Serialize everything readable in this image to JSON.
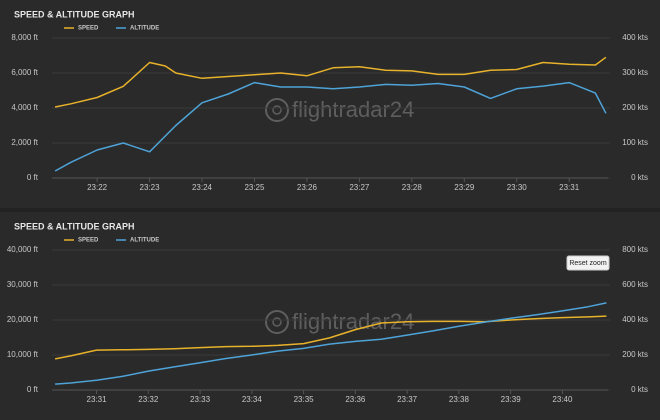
{
  "chart_data": [
    {
      "type": "line",
      "title": "SPEED & ALTITUDE GRAPH",
      "legend": "top",
      "grid": true,
      "watermark": "flightradar24",
      "x": [
        21.2,
        21.5,
        22.0,
        22.5,
        23.0,
        23.3,
        23.5,
        24.0,
        24.5,
        25.0,
        25.5,
        26.0,
        26.5,
        27.0,
        27.5,
        28.0,
        28.5,
        29.0,
        29.5,
        30.0,
        30.5,
        31.0,
        31.5,
        31.7
      ],
      "xlim": [
        21.14,
        31.74
      ],
      "xticks": [
        {
          "value": 22,
          "label": "23:22"
        },
        {
          "value": 23,
          "label": "23:23"
        },
        {
          "value": 24,
          "label": "23:24"
        },
        {
          "value": 25,
          "label": "23:25"
        },
        {
          "value": 26,
          "label": "23:26"
        },
        {
          "value": 27,
          "label": "23:27"
        },
        {
          "value": 28,
          "label": "23:28"
        },
        {
          "value": 29,
          "label": "23:29"
        },
        {
          "value": 30,
          "label": "23:30"
        },
        {
          "value": 31,
          "label": "23:31"
        }
      ],
      "ylim": [
        0,
        8000
      ],
      "yticks": [
        {
          "value": 0,
          "label": "0 ft"
        },
        {
          "value": 2000,
          "label": "2,000 ft"
        },
        {
          "value": 4000,
          "label": "4,000 ft"
        },
        {
          "value": 6000,
          "label": "6,000 ft"
        },
        {
          "value": 8000,
          "label": "8,000 ft"
        }
      ],
      "y2lim": [
        0,
        400
      ],
      "y2ticks": [
        {
          "value": 0,
          "label": "0 kts"
        },
        {
          "value": 100,
          "label": "100 kts"
        },
        {
          "value": 200,
          "label": "200 kts"
        },
        {
          "value": 300,
          "label": "300 kts"
        },
        {
          "value": 400,
          "label": "400 kts"
        }
      ],
      "series": [
        {
          "name": "SPEED",
          "color": "#e8b22a",
          "axis": "y2",
          "values": [
            203,
            212,
            230,
            262,
            330,
            320,
            300,
            285,
            290,
            295,
            300,
            292,
            315,
            318,
            308,
            306,
            296,
            296,
            308,
            310,
            330,
            325,
            323,
            345
          ]
        },
        {
          "name": "ALTITUDE",
          "color": "#4ea3d8",
          "values": [
            400,
            900,
            1600,
            2000,
            1500,
            2400,
            3000,
            4300,
            4800,
            5450,
            5200,
            5200,
            5100,
            5200,
            5350,
            5300,
            5400,
            5200,
            4550,
            5100,
            5250,
            5450,
            4850,
            3700
          ]
        }
      ]
    },
    {
      "type": "line",
      "title": "SPEED & ALTITUDE GRAPH",
      "legend": "top",
      "grid": true,
      "watermark": "flightradar24",
      "button": "Reset zoom",
      "x": [
        30.2,
        30.5,
        31.0,
        31.5,
        32.0,
        32.5,
        33.0,
        33.5,
        34.0,
        34.5,
        35.0,
        35.5,
        36.0,
        36.5,
        37.0,
        37.5,
        38.0,
        38.5,
        39.0,
        39.5,
        40.0,
        40.5,
        40.85
      ],
      "xlim": [
        30.14,
        40.88
      ],
      "xticks": [
        {
          "value": 31,
          "label": "23:31"
        },
        {
          "value": 32,
          "label": "23:32"
        },
        {
          "value": 33,
          "label": "23:33"
        },
        {
          "value": 34,
          "label": "23:34"
        },
        {
          "value": 35,
          "label": "23:35"
        },
        {
          "value": 36,
          "label": "23:36"
        },
        {
          "value": 37,
          "label": "23:37"
        },
        {
          "value": 38,
          "label": "23:38"
        },
        {
          "value": 39,
          "label": "23:39"
        },
        {
          "value": 40,
          "label": "23:40"
        }
      ],
      "ylim": [
        0,
        40000
      ],
      "yticks": [
        {
          "value": 0,
          "label": "0 ft"
        },
        {
          "value": 10000,
          "label": "10,000 ft"
        },
        {
          "value": 20000,
          "label": "20,000 ft"
        },
        {
          "value": 30000,
          "label": "30,000 ft"
        },
        {
          "value": 40000,
          "label": "40,000 ft"
        }
      ],
      "y2lim": [
        0,
        800
      ],
      "y2ticks": [
        {
          "value": 0,
          "label": "0 kts"
        },
        {
          "value": 200,
          "label": "200 kts"
        },
        {
          "value": 400,
          "label": "400 kts"
        },
        {
          "value": 600,
          "label": "600 kts"
        },
        {
          "value": 800,
          "label": "800 kts"
        }
      ],
      "series": [
        {
          "name": "SPEED",
          "color": "#e8b22a",
          "axis": "y2",
          "values": [
            178,
            195,
            228,
            230,
            232,
            236,
            242,
            248,
            250,
            255,
            265,
            298,
            345,
            383,
            390,
            392,
            392,
            390,
            400,
            408,
            414,
            418,
            422
          ]
        },
        {
          "name": "ALTITUDE",
          "color": "#4ea3d8",
          "values": [
            1700,
            2000,
            2800,
            3900,
            5400,
            6600,
            7800,
            9000,
            10000,
            11100,
            11900,
            13100,
            13900,
            14500,
            15700,
            16900,
            18200,
            19400,
            20500,
            21500,
            22600,
            23800,
            24900
          ]
        }
      ]
    }
  ]
}
